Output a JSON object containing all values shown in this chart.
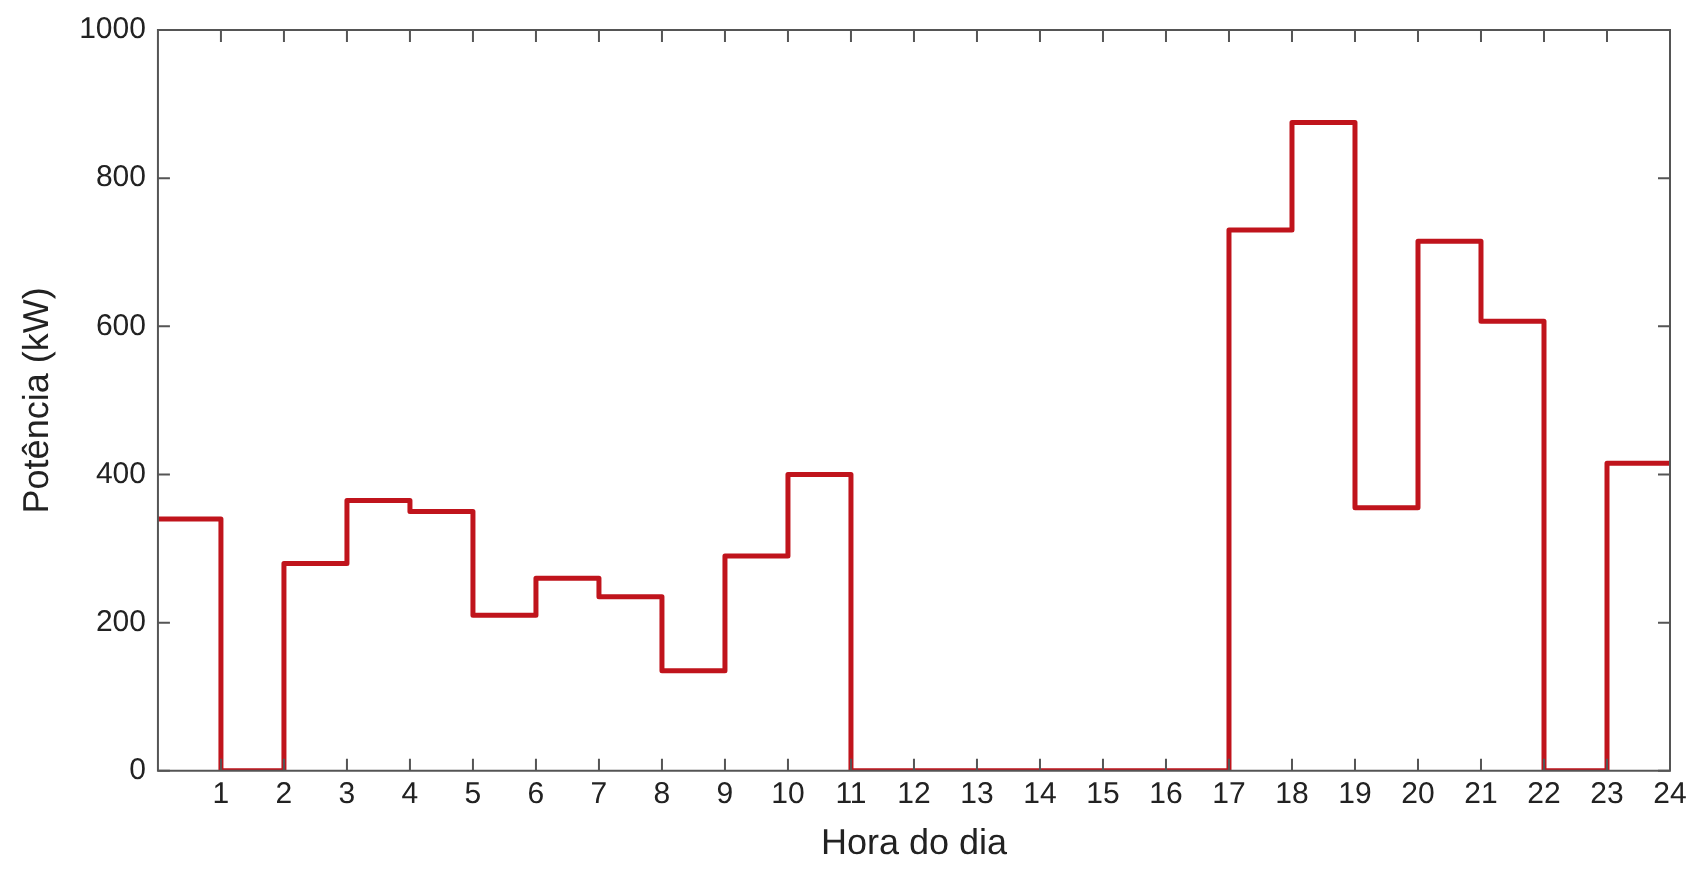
{
  "chart_data": {
    "type": "step",
    "xlabel": "Hora do dia",
    "ylabel": "Potência (kW)",
    "x": [
      0,
      1,
      2,
      3,
      4,
      5,
      6,
      7,
      8,
      9,
      10,
      11,
      12,
      13,
      14,
      15,
      16,
      17,
      18,
      19,
      20,
      21,
      22,
      23,
      24
    ],
    "series": [
      {
        "color": "#c0141c",
        "values": [
          340,
          0,
          280,
          365,
          350,
          210,
          260,
          235,
          135,
          290,
          400,
          0,
          0,
          0,
          0,
          0,
          0,
          730,
          875,
          355,
          715,
          607,
          0,
          415,
          415
        ]
      }
    ],
    "xlim": [
      0,
      24
    ],
    "xticks": [
      1,
      2,
      3,
      4,
      5,
      6,
      7,
      8,
      9,
      10,
      11,
      12,
      13,
      14,
      15,
      16,
      17,
      18,
      19,
      20,
      21,
      22,
      23,
      24
    ],
    "ylim": [
      0,
      1000
    ],
    "yticks": [
      0,
      200,
      400,
      600,
      800,
      1000
    ],
    "grid": false,
    "legend": false,
    "marker": "none",
    "line_style": "solid"
  }
}
